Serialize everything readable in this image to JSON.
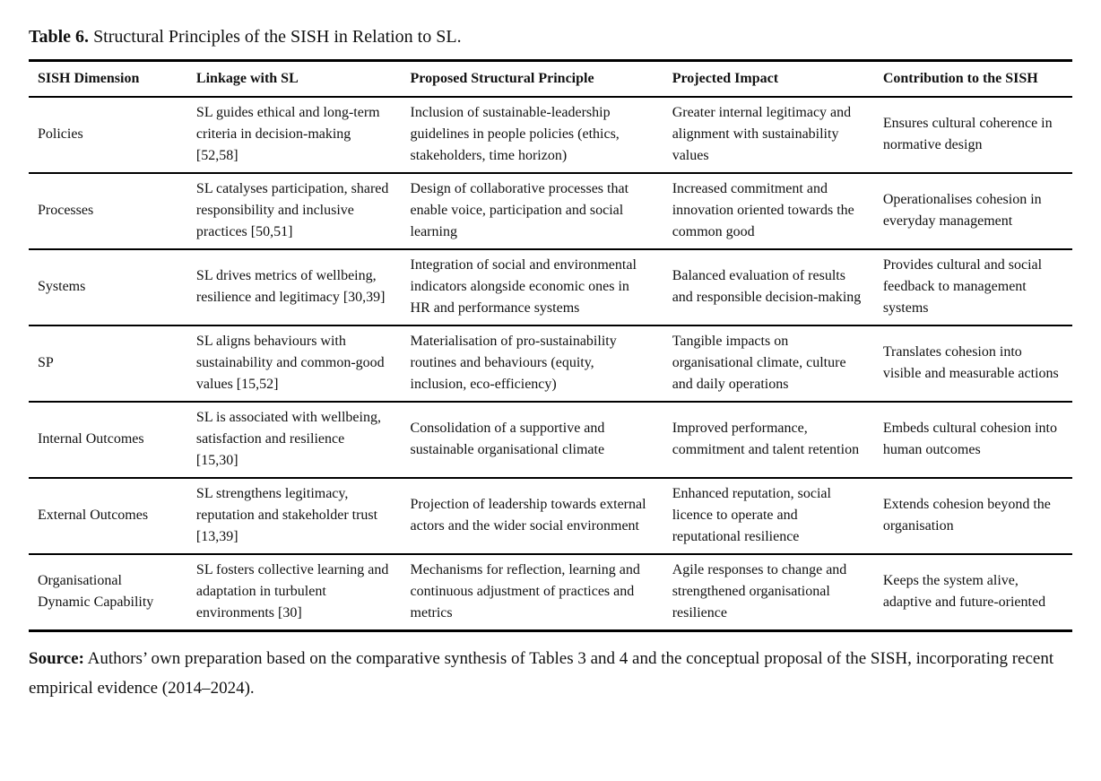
{
  "title": {
    "label": "Table 6.",
    "text": " Structural Principles of the SISH in Relation to SL."
  },
  "table": {
    "headers": [
      "SISH Dimension",
      "Linkage with SL",
      "Proposed Structural Principle",
      "Projected Impact",
      "Contribution to the SISH"
    ],
    "rows": [
      {
        "dimension": "Policies",
        "linkage": "SL guides ethical and long-term criteria in decision-making [52,58]",
        "principle": "Inclusion of sustainable-leadership guidelines in people policies (ethics, stakeholders, time horizon)",
        "impact": "Greater internal legitimacy and alignment with sustainability values",
        "contribution": "Ensures cultural coherence in normative design"
      },
      {
        "dimension": "Processes",
        "linkage": "SL catalyses participation, shared responsibility and inclusive practices [50,51]",
        "principle": "Design of collaborative processes that enable voice, participation and social learning",
        "impact": "Increased commitment and innovation oriented towards the common good",
        "contribution": "Operationalises cohesion in everyday management"
      },
      {
        "dimension": "Systems",
        "linkage": "SL drives metrics of wellbeing, resilience and legitimacy [30,39]",
        "principle": "Integration of social and environmental indicators alongside economic ones in HR and performance systems",
        "impact": "Balanced evaluation of results and responsible decision-making",
        "contribution": "Provides cultural and social feedback to management systems"
      },
      {
        "dimension": "SP",
        "linkage": "SL aligns behaviours with sustainability and common-good values [15,52]",
        "principle": "Materialisation of pro-sustainability routines and behaviours (equity, inclusion, eco-efficiency)",
        "impact": "Tangible impacts on organisational climate, culture and daily operations",
        "contribution": "Translates cohesion into visible and measurable actions"
      },
      {
        "dimension": "Internal Outcomes",
        "linkage": "SL is associated with wellbeing, satisfaction and resilience [15,30]",
        "principle": "Consolidation of a supportive and sustainable organisational climate",
        "impact": "Improved performance, commitment and talent retention",
        "contribution": "Embeds cultural cohesion into human outcomes"
      },
      {
        "dimension": "External Outcomes",
        "linkage": "SL strengthens legitimacy, reputation and stakeholder trust [13,39]",
        "principle": "Projection of leadership towards external actors and the wider social environment",
        "impact": "Enhanced reputation, social licence to operate and reputational resilience",
        "contribution": "Extends cohesion beyond the organisation"
      },
      {
        "dimension": "Organisational Dynamic Capability",
        "linkage": "SL fosters collective learning and adaptation in turbulent environments [30]",
        "principle": "Mechanisms for reflection, learning and continuous adjustment of practices and metrics",
        "impact": "Agile responses to change and strengthened organisational resilience",
        "contribution": "Keeps the system alive, adaptive and future-oriented"
      }
    ]
  },
  "source": {
    "label": "Source:",
    "text": " Authors’ own preparation based on the comparative synthesis of Tables 3 and 4 and the conceptual proposal of the SISH, incorporating recent empirical evidence (2014–2024)."
  }
}
